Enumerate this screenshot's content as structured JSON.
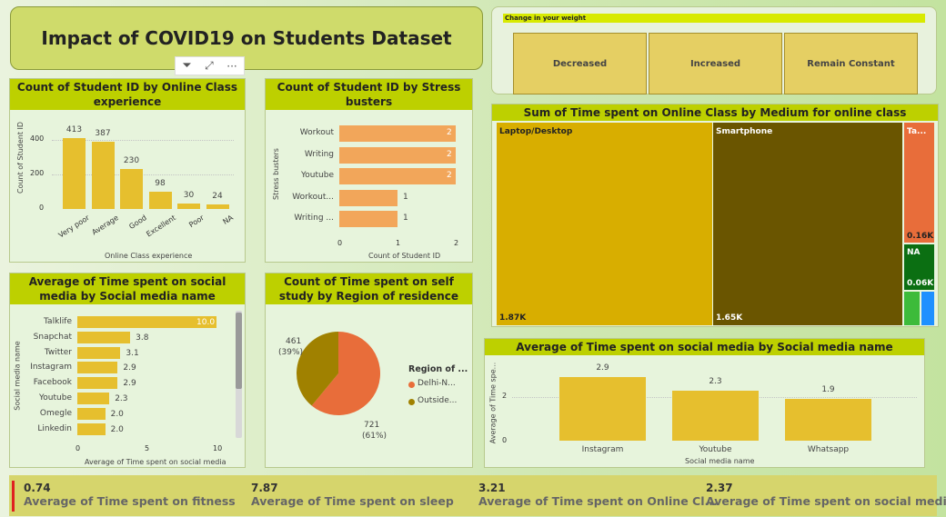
{
  "title": "Impact of COVID19 on Students Dataset",
  "weight_slicer": {
    "header": "Change in your weight",
    "options": [
      "Decreased",
      "Increased",
      "Remain Constant"
    ]
  },
  "toolbar": {
    "more": "···"
  },
  "chart1": {
    "title": "Count of Student ID by Online Class experience",
    "ylabel": "Count of Student ID",
    "xlabel": "Online Class experience",
    "yticks": [
      "400",
      "200",
      "0"
    ]
  },
  "chart2": {
    "title": "Count of Student ID by Stress busters",
    "ylabel": "Stress busters",
    "xlabel": "Count of Student ID",
    "xticks": [
      "0",
      "1",
      "2"
    ]
  },
  "chart3": {
    "title": "Average of Time spent on social media by Social media name",
    "ylabel": "Social media name",
    "xlabel": "Average of Time spent on social media",
    "xticks": [
      "0",
      "5",
      "10"
    ]
  },
  "chart4": {
    "title": "Count of Time spent on self study by Region of residence",
    "legend_title": "Region of ...",
    "legend_items": [
      "Delhi-N...",
      "Outside..."
    ],
    "labels": [
      {
        "value": "461",
        "pct": "(39%)"
      },
      {
        "value": "721",
        "pct": "(61%)"
      }
    ]
  },
  "chart5": {
    "title": "Sum of Time spent on Online Class by Medium for online class",
    "tiles": [
      {
        "name": "Laptop/Desktop",
        "value": "1.87K"
      },
      {
        "name": "Smartphone",
        "value": "1.65K"
      },
      {
        "name": "Ta...",
        "value": "0.16K"
      },
      {
        "name": "NA",
        "value": "0.06K"
      }
    ]
  },
  "chart6": {
    "title": "Average of Time spent on social media by Social media name",
    "ylabel": "Average of Time spe...",
    "xlabel": "Social media name",
    "yticks": [
      "2",
      "0"
    ]
  },
  "chart_data": [
    {
      "type": "bar",
      "title": "Count of Student ID by Online Class experience",
      "categories": [
        "Very poor",
        "Average",
        "Good",
        "Excellent",
        "Poor",
        "NA"
      ],
      "values": [
        413,
        387,
        230,
        98,
        30,
        24
      ],
      "xlabel": "Online Class experience",
      "ylabel": "Count of Student ID",
      "ylim": [
        0,
        450
      ]
    },
    {
      "type": "bar",
      "orientation": "horizontal",
      "title": "Count of Student ID by Stress busters",
      "categories": [
        "Workout",
        "Writing",
        "Youtube",
        "Workout...",
        "Writing ..."
      ],
      "values": [
        2,
        2,
        2,
        1,
        1
      ],
      "xlabel": "Count of Student ID",
      "ylabel": "Stress busters",
      "xlim": [
        0,
        2
      ]
    },
    {
      "type": "bar",
      "orientation": "horizontal",
      "title": "Average of Time spent on social media by Social media name",
      "categories": [
        "Talklife",
        "Snapchat",
        "Twitter",
        "Instagram",
        "Facebook",
        "Youtube",
        "Omegle",
        "Linkedin"
      ],
      "values": [
        10.0,
        3.8,
        3.1,
        2.9,
        2.9,
        2.3,
        2.0,
        2.0
      ],
      "xlabel": "Average of Time spent on social media",
      "ylabel": "Social media name",
      "xlim": [
        0,
        10
      ]
    },
    {
      "type": "pie",
      "title": "Count of Time spent on self study by Region of residence",
      "labels": [
        "Delhi-N...",
        "Outside..."
      ],
      "values": [
        721,
        461
      ],
      "percent": [
        61,
        39
      ]
    },
    {
      "type": "heatmap",
      "subtype": "treemap",
      "title": "Sum of Time spent on Online Class by Medium for online class",
      "labels": [
        "Laptop/Desktop",
        "Smartphone",
        "Ta...",
        "NA"
      ],
      "values": [
        1870,
        1650,
        160,
        60
      ]
    },
    {
      "type": "bar",
      "title": "Average of Time spent on social media by Social media name",
      "categories": [
        "Instagram",
        "Youtube",
        "Whatsapp"
      ],
      "values": [
        2.9,
        2.3,
        1.9
      ],
      "xlabel": "Social media name",
      "ylabel": "Average of Time spe...",
      "ylim": [
        0,
        3.2
      ]
    }
  ],
  "kpis": [
    {
      "value": "0.74",
      "label": "Average of Time spent on fitness"
    },
    {
      "value": "7.87",
      "label": "Average of Time spent on sleep"
    },
    {
      "value": "3.21",
      "label": "Average of Time spent on Online Cl..."
    },
    {
      "value": "2.37",
      "label": "Average of Time spent on social media"
    }
  ]
}
